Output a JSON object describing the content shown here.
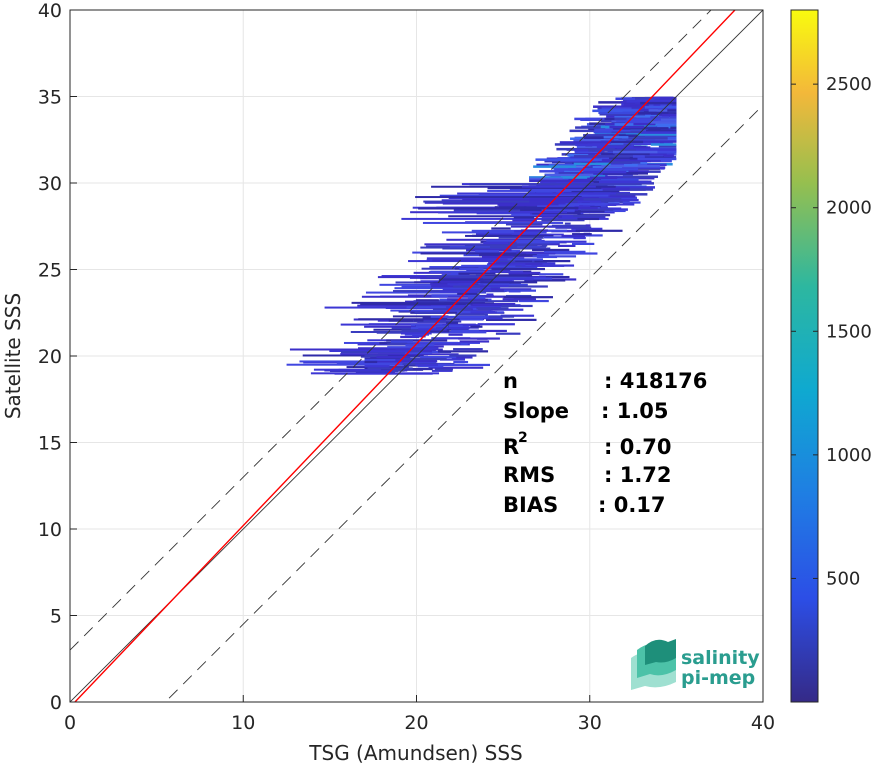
{
  "colors": {
    "one_to_one": "#333333",
    "fit_line": "#ff0000",
    "dashed_bounds": "#333333",
    "grid": "#e6e6e6",
    "density_low": "#3b2fc9",
    "density_mid": "#1f9ede",
    "density_high": "#fcee21",
    "logo": "#2a9d8f"
  },
  "chart_data": {
    "type": "heatmap",
    "xlabel": "TSG (Amundsen) SSS",
    "ylabel": "Satellite SSS",
    "xlim": [
      0,
      40
    ],
    "ylim": [
      0,
      40
    ],
    "xticks": [
      "0",
      "10",
      "20",
      "30",
      "40"
    ],
    "yticks": [
      "0",
      "5",
      "10",
      "15",
      "20",
      "25",
      "30",
      "35",
      "40"
    ],
    "grid": true,
    "colorbar": {
      "range": [
        0,
        2800
      ],
      "ticks": [
        "500",
        "1000",
        "1500",
        "2000",
        "2500"
      ],
      "tick_values": [
        500,
        1000,
        1500,
        2000,
        2500
      ],
      "colormap": "parula"
    },
    "lines": [
      {
        "kind": "one-to-one",
        "slope": 1,
        "intercept": 0
      },
      {
        "kind": "fit",
        "slope": 1.05,
        "intercept": -0.3
      },
      {
        "kind": "upper-bound",
        "slope": 1,
        "intercept": 3
      },
      {
        "kind": "lower-bound",
        "slope": 1,
        "intercept": -5.5
      }
    ],
    "density": {
      "description_regions": [
        {
          "x": [
            28,
            35
          ],
          "y": [
            29,
            35
          ],
          "count": "high"
        },
        {
          "x": [
            17,
            30
          ],
          "y": [
            19,
            29
          ],
          "count": "low"
        },
        {
          "x": [
            12,
            28
          ],
          "y": [
            28,
            31
          ],
          "count": "low"
        }
      ]
    },
    "stats": {
      "n_label": "n",
      "n_value": ": 418176",
      "slope_label": "Slope",
      "slope_value": ": 1.05",
      "r2_label": "R",
      "r2_sup": "2",
      "r2_value": ": 0.70",
      "rms_label": "RMS",
      "rms_value": ": 1.72",
      "bias_label": "BIAS",
      "bias_value": ": 0.17"
    }
  },
  "logo": {
    "line1": "salinity",
    "line2": "pi-mep"
  }
}
